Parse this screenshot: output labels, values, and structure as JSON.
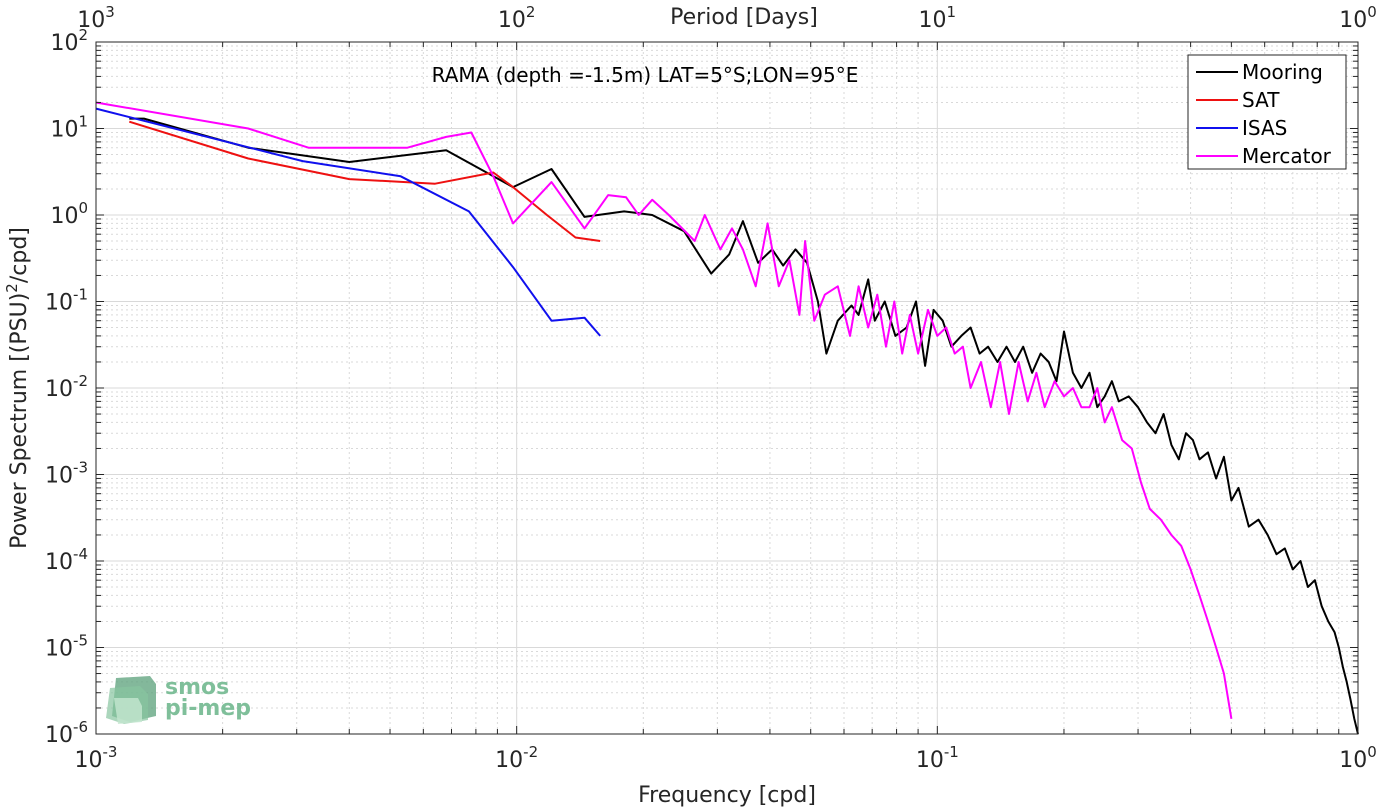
{
  "chart_data": {
    "type": "line",
    "title": "RAMA (depth =-1.5m) LAT=5°S;LON=95°E",
    "xlabel": "Frequency [cpd]",
    "ylabel": "Power Spectrum [(PSU)²/cpd]",
    "ylabel_parts": {
      "before": "Power Spectrum [(PSU)",
      "sup": "2",
      "after": "/cpd]"
    },
    "top_xlabel": "Period [Days]",
    "xscale": "log",
    "yscale": "log",
    "xlim": [
      0.001,
      1
    ],
    "ylim": [
      1e-06,
      100
    ],
    "grid": true,
    "legend_position": "top-right",
    "x_ticks": [
      {
        "value": 0.001,
        "base": "10",
        "exp": "-3"
      },
      {
        "value": 0.01,
        "base": "10",
        "exp": "-2"
      },
      {
        "value": 0.1,
        "base": "10",
        "exp": "-1"
      },
      {
        "value": 1,
        "base": "10",
        "exp": "0"
      }
    ],
    "top_ticks": [
      {
        "freq": 0.001,
        "base": "10",
        "exp": "3"
      },
      {
        "freq": 0.01,
        "base": "10",
        "exp": "2"
      },
      {
        "freq": 0.1,
        "base": "10",
        "exp": "1"
      },
      {
        "freq": 1,
        "base": "10",
        "exp": "0"
      }
    ],
    "y_ticks": [
      {
        "value": 100,
        "base": "10",
        "exp": "2"
      },
      {
        "value": 10,
        "base": "10",
        "exp": "1"
      },
      {
        "value": 1,
        "base": "10",
        "exp": "0"
      },
      {
        "value": 0.1,
        "base": "10",
        "exp": "-1"
      },
      {
        "value": 0.01,
        "base": "10",
        "exp": "-2"
      },
      {
        "value": 0.001,
        "base": "10",
        "exp": "-3"
      },
      {
        "value": 0.0001,
        "base": "10",
        "exp": "-4"
      },
      {
        "value": 1e-05,
        "base": "10",
        "exp": "-5"
      },
      {
        "value": 1e-06,
        "base": "10",
        "exp": "-6"
      }
    ],
    "series": [
      {
        "name": "Mooring",
        "color": "#000000",
        "x": [
          0.0012,
          0.0013,
          0.0023,
          0.004,
          0.0068,
          0.0098,
          0.0121,
          0.0145,
          0.018,
          0.021,
          0.025,
          0.029,
          0.032,
          0.0345,
          0.0375,
          0.0405,
          0.043,
          0.046,
          0.049,
          0.052,
          0.0545,
          0.058,
          0.0625,
          0.065,
          0.0685,
          0.071,
          0.075,
          0.0795,
          0.0845,
          0.089,
          0.0935,
          0.098,
          0.103,
          0.108,
          0.114,
          0.12,
          0.126,
          0.132,
          0.139,
          0.146,
          0.153,
          0.16,
          0.168,
          0.176,
          0.184,
          0.192,
          0.2,
          0.21,
          0.22,
          0.23,
          0.24,
          0.25,
          0.26,
          0.27,
          0.285,
          0.3,
          0.315,
          0.33,
          0.345,
          0.36,
          0.375,
          0.39,
          0.405,
          0.42,
          0.44,
          0.46,
          0.48,
          0.5,
          0.52,
          0.55,
          0.58,
          0.61,
          0.64,
          0.67,
          0.7,
          0.73,
          0.76,
          0.79,
          0.82,
          0.85,
          0.88,
          0.9,
          0.92,
          0.94,
          0.96,
          0.98,
          1.0
        ],
        "y": [
          13,
          13,
          6,
          4.1,
          5.6,
          2.1,
          3.4,
          0.95,
          1.1,
          1.0,
          0.65,
          0.21,
          0.35,
          0.85,
          0.28,
          0.4,
          0.26,
          0.4,
          0.28,
          0.1,
          0.025,
          0.06,
          0.09,
          0.07,
          0.18,
          0.06,
          0.1,
          0.04,
          0.05,
          0.1,
          0.018,
          0.08,
          0.06,
          0.03,
          0.04,
          0.05,
          0.025,
          0.03,
          0.02,
          0.03,
          0.02,
          0.03,
          0.015,
          0.025,
          0.02,
          0.012,
          0.045,
          0.015,
          0.01,
          0.015,
          0.006,
          0.008,
          0.012,
          0.007,
          0.008,
          0.006,
          0.004,
          0.003,
          0.005,
          0.0022,
          0.0015,
          0.003,
          0.0025,
          0.0015,
          0.0018,
          0.0009,
          0.0016,
          0.0005,
          0.0007,
          0.00025,
          0.0003,
          0.0002,
          0.00012,
          0.00014,
          8e-05,
          0.0001,
          5e-05,
          6e-05,
          3e-05,
          2e-05,
          1.5e-05,
          1e-05,
          6e-06,
          4e-06,
          2.5e-06,
          1.5e-06,
          8e-07
        ]
      },
      {
        "name": "SAT",
        "color": "#ee1111",
        "x": [
          0.0012,
          0.0023,
          0.004,
          0.0064,
          0.0088,
          0.0098,
          0.0118,
          0.0138,
          0.0158
        ],
        "y": [
          12,
          4.5,
          2.6,
          2.3,
          3.1,
          2.1,
          1.0,
          0.55,
          0.5
        ]
      },
      {
        "name": "ISAS",
        "color": "#1010ee",
        "x": [
          0.001,
          0.0031,
          0.0053,
          0.0077,
          0.0098,
          0.0121,
          0.0145,
          0.0158
        ],
        "y": [
          17,
          4.2,
          2.8,
          1.1,
          0.25,
          0.06,
          0.065,
          0.04
        ]
      },
      {
        "name": "Mercator",
        "color": "#ff00ff",
        "x": [
          0.001,
          0.0023,
          0.0032,
          0.0055,
          0.0068,
          0.0078,
          0.0088,
          0.0098,
          0.0121,
          0.0145,
          0.0165,
          0.0182,
          0.0195,
          0.021,
          0.023,
          0.0265,
          0.028,
          0.0305,
          0.0325,
          0.0345,
          0.037,
          0.0395,
          0.042,
          0.0445,
          0.047,
          0.0485,
          0.051,
          0.054,
          0.058,
          0.062,
          0.065,
          0.0685,
          0.072,
          0.0755,
          0.079,
          0.0825,
          0.086,
          0.09,
          0.095,
          0.1,
          0.105,
          0.11,
          0.115,
          0.12,
          0.127,
          0.134,
          0.141,
          0.148,
          0.156,
          0.164,
          0.172,
          0.18,
          0.19,
          0.2,
          0.21,
          0.22,
          0.23,
          0.24,
          0.25,
          0.26,
          0.275,
          0.29,
          0.305,
          0.32,
          0.34,
          0.36,
          0.38,
          0.4,
          0.42,
          0.44,
          0.46,
          0.48,
          0.5
        ],
        "y": [
          20,
          10,
          6,
          6,
          8,
          9,
          2.8,
          0.8,
          2.4,
          0.7,
          1.7,
          1.6,
          1.0,
          1.5,
          1.0,
          0.5,
          1.0,
          0.4,
          0.7,
          0.4,
          0.15,
          0.8,
          0.15,
          0.3,
          0.07,
          0.5,
          0.06,
          0.12,
          0.15,
          0.04,
          0.15,
          0.05,
          0.12,
          0.03,
          0.1,
          0.025,
          0.07,
          0.025,
          0.08,
          0.04,
          0.05,
          0.025,
          0.03,
          0.01,
          0.02,
          0.006,
          0.02,
          0.005,
          0.02,
          0.007,
          0.015,
          0.006,
          0.012,
          0.008,
          0.01,
          0.006,
          0.006,
          0.01,
          0.004,
          0.006,
          0.0025,
          0.002,
          0.0008,
          0.0004,
          0.0003,
          0.0002,
          0.00015,
          8e-05,
          4e-05,
          2e-05,
          1e-05,
          5e-06,
          1.5e-06
        ]
      }
    ]
  },
  "logo": {
    "line1": "smos",
    "line2": "pi-mep"
  }
}
